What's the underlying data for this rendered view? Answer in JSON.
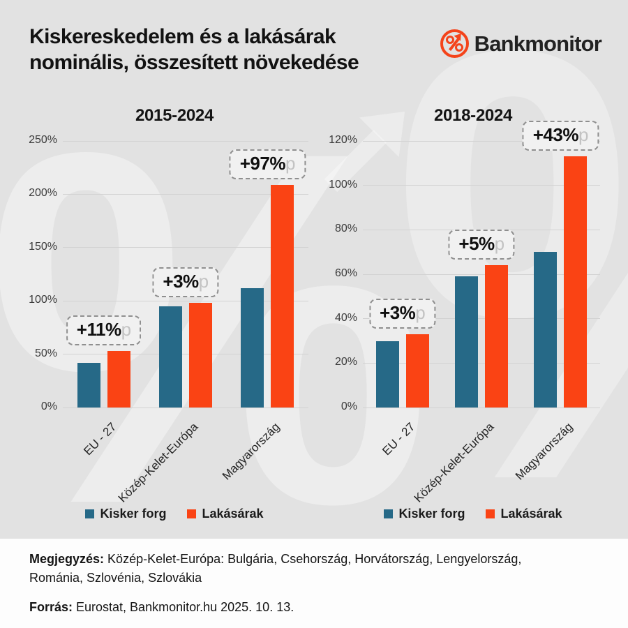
{
  "header": {
    "title_line1": "Kiskereskedelem és a lakásárak",
    "title_line2": "nominális, összesített növekedése",
    "logo_text": "Bankmonitor"
  },
  "colors": {
    "kisker_forg": "#266987",
    "lakasarak": "#fa4314",
    "background": "#e2e2e2",
    "accent_orange": "#f4431a",
    "annotation_suffix": "#c3c3c3"
  },
  "watermark": {
    "glyph": "%"
  },
  "chart_data": [
    {
      "type": "bar",
      "title": "2015-2024",
      "categories": [
        "EU - 27",
        "Közép-Kelet-Európa",
        "Magyarország"
      ],
      "series": [
        {
          "name": "Kisker forg",
          "values": [
            42,
            95,
            112
          ]
        },
        {
          "name": "Lakásárak",
          "values": [
            53,
            98,
            209
          ]
        }
      ],
      "annotations": [
        {
          "value": "+11%",
          "suffix": "p"
        },
        {
          "value": "+3%",
          "suffix": "p"
        },
        {
          "value": "+97%",
          "suffix": "p"
        }
      ],
      "ylabel": "",
      "ylim": [
        0,
        250
      ],
      "yticks": [
        0,
        50,
        100,
        150,
        200,
        250
      ],
      "ytick_suffix": "%",
      "grid": true,
      "legend_position": "bottom"
    },
    {
      "type": "bar",
      "title": "2018-2024",
      "categories": [
        "EU - 27",
        "Közép-Kelet-Európa",
        "Magyarország"
      ],
      "series": [
        {
          "name": "Kisker forg",
          "values": [
            30,
            59,
            70
          ]
        },
        {
          "name": "Lakásárak",
          "values": [
            33,
            64,
            113
          ]
        }
      ],
      "annotations": [
        {
          "value": "+3%",
          "suffix": "p"
        },
        {
          "value": "+5%",
          "suffix": "p"
        },
        {
          "value": "+43%",
          "suffix": "p"
        }
      ],
      "ylabel": "",
      "ylim": [
        0,
        120
      ],
      "yticks": [
        0,
        20,
        40,
        60,
        80,
        100,
        120
      ],
      "ytick_suffix": "%",
      "grid": true,
      "legend_position": "bottom"
    }
  ],
  "footer": {
    "note_label": "Megjegyzés:",
    "note_text": " Közép-Kelet-Európa: Bulgária, Csehország, Horvátország, Lengyelország, Románia, Szlovénia, Szlovákia",
    "source_label": "Forrás:",
    "source_text": " Eurostat, Bankmonitor.hu 2025. 10. 13."
  }
}
